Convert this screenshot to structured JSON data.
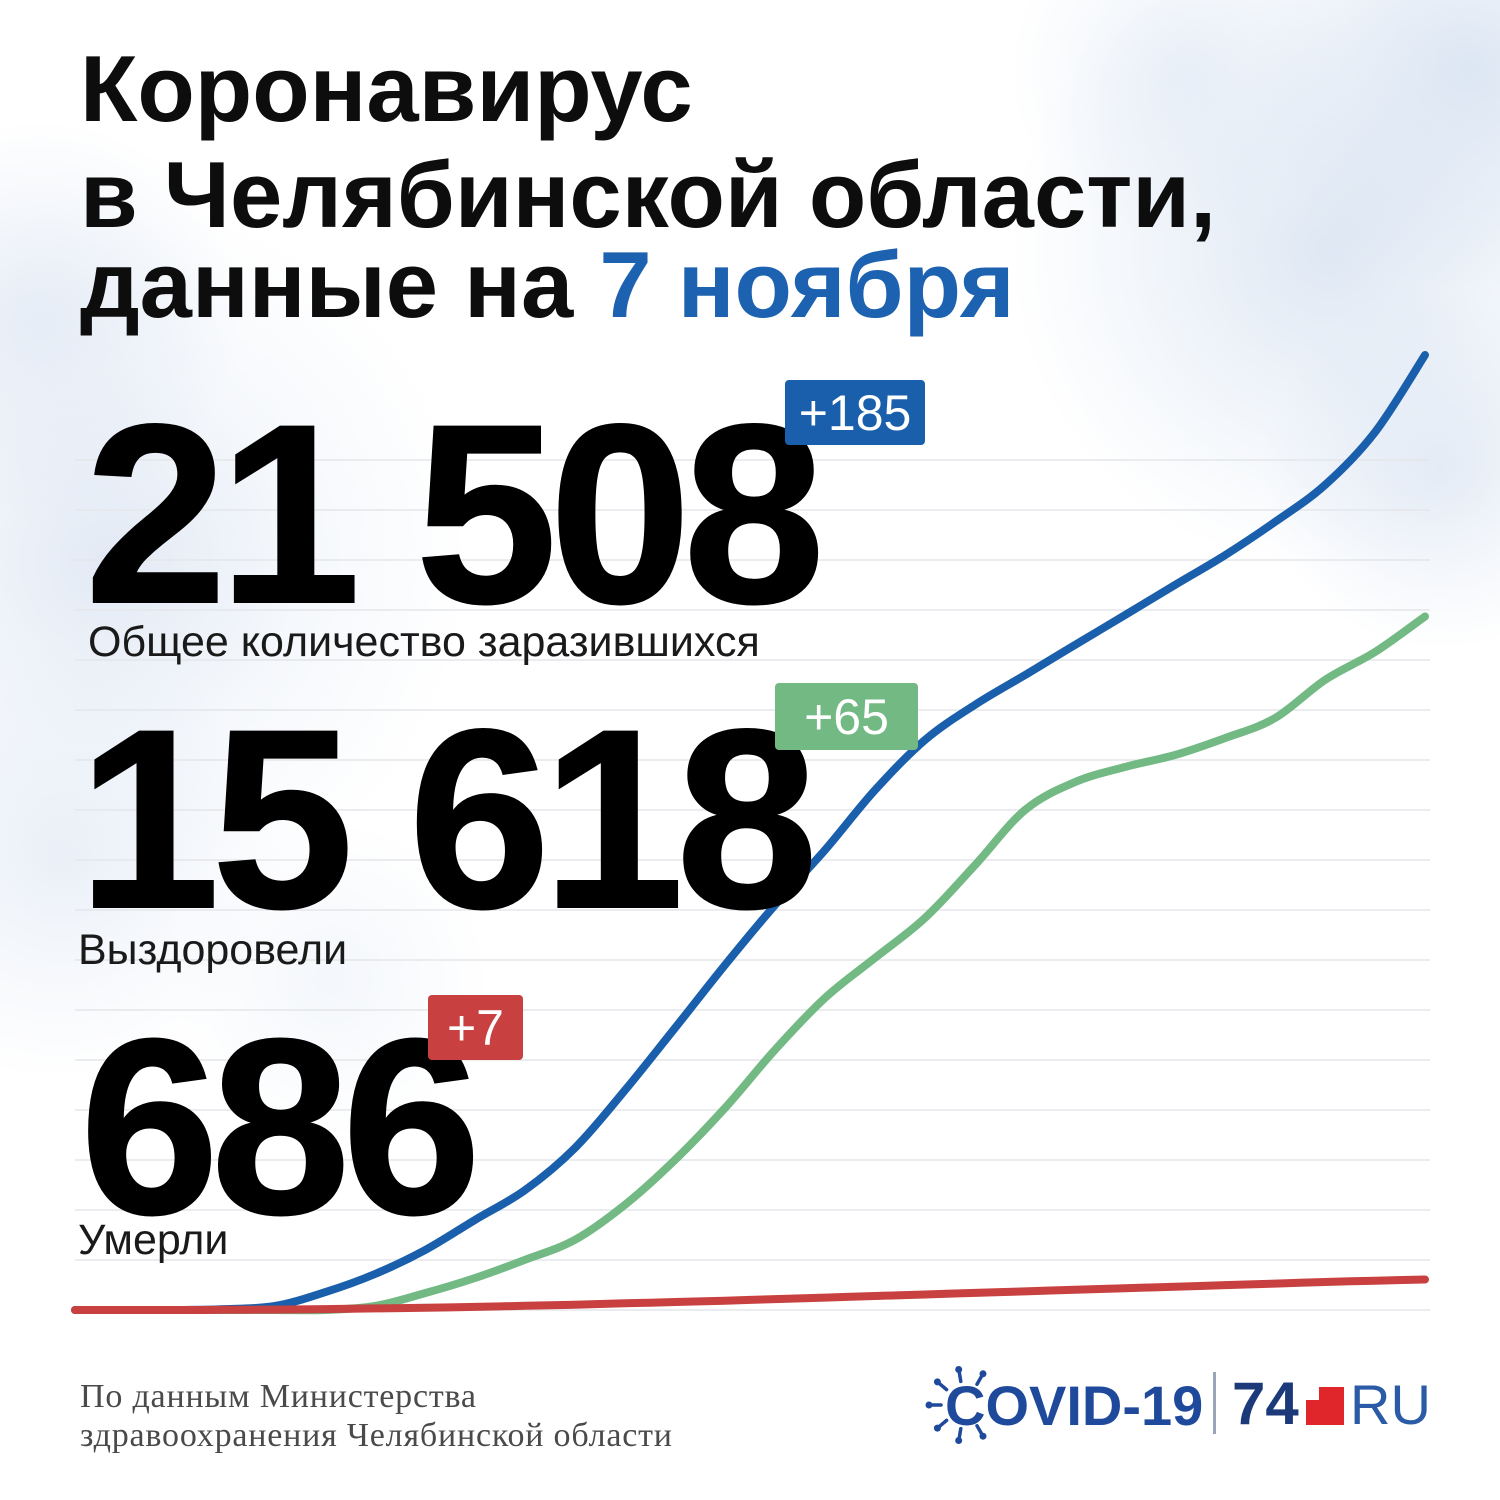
{
  "header": {
    "title_line1": "Коронавирус",
    "title_line2": "в Челябинской области,",
    "title_line3_prefix": "данные на",
    "title_line3_date": "7 ноября"
  },
  "stats": {
    "infected": {
      "value": "21 508",
      "delta": "+185",
      "label": "Общее количество заразившихся",
      "color": "#1a5fac"
    },
    "recovered": {
      "value": "15 618",
      "delta": "+65",
      "label": "Выздоровели",
      "color": "#72b983"
    },
    "deaths": {
      "value": "686",
      "delta": "+7",
      "label": "Умерли",
      "color": "#c8403f"
    }
  },
  "footer": {
    "source_line1": "По данным Министерства",
    "source_line2": "здравоохранения Челябинской области"
  },
  "logo": {
    "covid": "COVID-19",
    "brand_number": "74",
    "brand_suffix": "RU",
    "virus_icon": "virus-icon",
    "brand_square_icon": "red-square-icon"
  },
  "colors": {
    "title_accent": "#1c62b0",
    "logo_navy": "#1f4a9c",
    "brand_red": "#e0262b"
  },
  "chart_data": {
    "type": "line",
    "title": "",
    "xlabel": "",
    "ylabel": "",
    "ylim": [
      0,
      21508
    ],
    "grid": true,
    "series": [
      {
        "color": "#1a5fac",
        "values": [
          0,
          0,
          0,
          20,
          90,
          400,
          810,
          1350,
          2030,
          2700,
          3650,
          4950,
          6350,
          7770,
          9120,
          10360,
          11710,
          12840,
          13630,
          14300,
          14980,
          15650,
          16330,
          17000,
          17750,
          18580,
          19770,
          21508
        ]
      },
      {
        "color": "#72b983",
        "values": [
          0,
          0,
          0,
          0,
          0,
          0,
          90,
          380,
          720,
          1130,
          1580,
          2370,
          3380,
          4550,
          5860,
          7030,
          7930,
          8830,
          10020,
          11260,
          11890,
          12230,
          12500,
          12880,
          13330,
          14190,
          14820,
          15618
        ]
      },
      {
        "color": "#c8403f",
        "values": [
          0,
          0,
          0,
          5,
          10,
          20,
          35,
          50,
          70,
          95,
          120,
          150,
          180,
          210,
          245,
          280,
          315,
          350,
          385,
          420,
          455,
          490,
          525,
          560,
          595,
          630,
          660,
          686
        ]
      }
    ]
  }
}
